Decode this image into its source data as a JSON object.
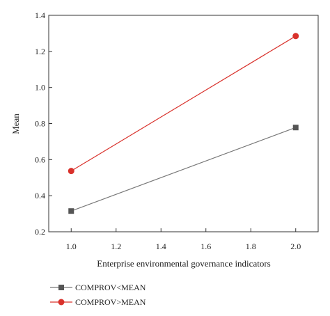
{
  "chart_data": {
    "type": "line",
    "title": "",
    "xlabel": "Enterprise environmental governance indicators",
    "ylabel": "Mean",
    "xlim": [
      0.9,
      2.1
    ],
    "ylim": [
      0.2,
      1.4
    ],
    "xticks": [
      "1.0",
      "1.2",
      "1.4",
      "1.6",
      "1.8",
      "2.0"
    ],
    "yticks": [
      "0.2",
      "0.4",
      "0.6",
      "0.8",
      "1.0",
      "1.2",
      "1.4"
    ],
    "grid": false,
    "legend_position": "bottom-left",
    "series": [
      {
        "name": "COMPROV<MEAN",
        "x": [
          1.0,
          2.0
        ],
        "y": [
          0.315,
          0.778
        ],
        "marker": "square",
        "color": "#555555",
        "line_color": "#777777"
      },
      {
        "name": "COMPROV>MEAN",
        "x": [
          1.0,
          2.0
        ],
        "y": [
          0.537,
          1.285
        ],
        "marker": "circle",
        "color": "#d9312b",
        "line_color": "#d9312b"
      }
    ]
  }
}
